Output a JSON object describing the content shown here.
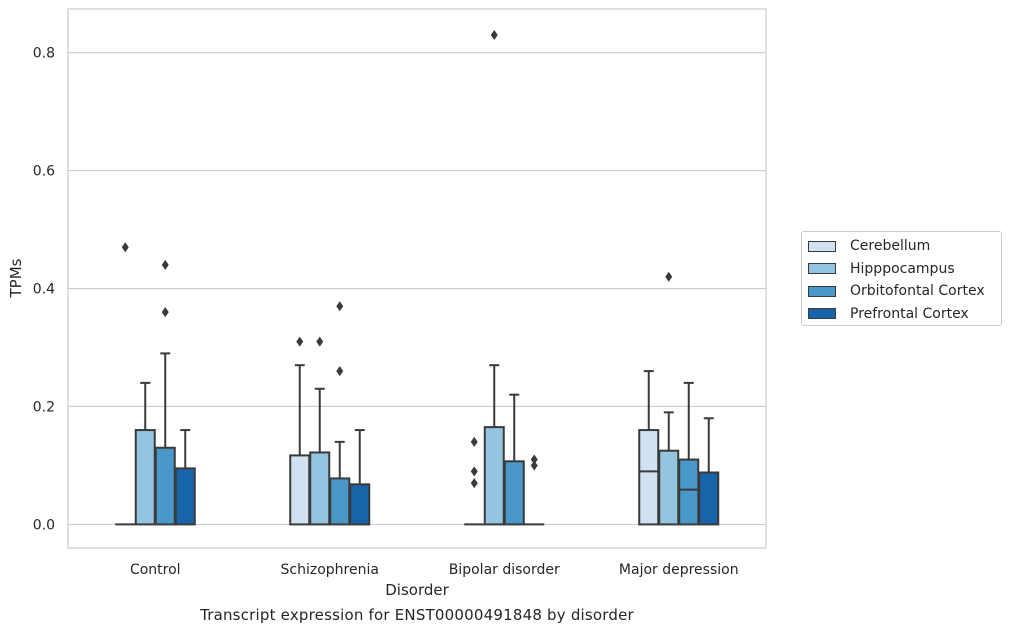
{
  "caption": "Transcript expression for ENST00000491848 by disorder",
  "chart_data": {
    "type": "box",
    "xlabel": "Disorder",
    "ylabel": "TPMs",
    "ylim": [
      -0.04,
      0.874
    ],
    "yticks": [
      "0.0",
      "0.2",
      "0.4",
      "0.6",
      "0.8"
    ],
    "ytick_values": [
      0.0,
      0.2,
      0.4,
      0.6,
      0.8
    ],
    "grid": true,
    "legend_position": "right",
    "categories": [
      "Control",
      "Schizophrenia",
      "Bipolar disorder",
      "Major depression"
    ],
    "series": [
      {
        "name": "Cerebellum",
        "color": "#d0e1f2",
        "boxes": [
          {
            "q1": 0,
            "median": 0,
            "q3": 0,
            "whisker_low": 0,
            "whisker_high": 0,
            "outliers": [
              0.47
            ]
          },
          {
            "q1": 0,
            "median": 0,
            "q3": 0.117,
            "whisker_low": 0,
            "whisker_high": 0.27,
            "outliers": [
              0.31
            ]
          },
          {
            "q1": 0,
            "median": 0,
            "q3": 0,
            "whisker_low": 0,
            "whisker_high": 0,
            "outliers": [
              0.07,
              0.09,
              0.14
            ]
          },
          {
            "q1": 0,
            "median": 0.09,
            "q3": 0.16,
            "whisker_low": 0,
            "whisker_high": 0.26,
            "outliers": []
          }
        ]
      },
      {
        "name": "Hipppocampus",
        "color": "#94c4df",
        "boxes": [
          {
            "q1": 0,
            "median": 0,
            "q3": 0.16,
            "whisker_low": 0,
            "whisker_high": 0.24,
            "outliers": []
          },
          {
            "q1": 0,
            "median": 0,
            "q3": 0.122,
            "whisker_low": 0,
            "whisker_high": 0.23,
            "outliers": [
              0.31
            ]
          },
          {
            "q1": 0,
            "median": 0,
            "q3": 0.165,
            "whisker_low": 0,
            "whisker_high": 0.27,
            "outliers": [
              0.83
            ]
          },
          {
            "q1": 0,
            "median": 0,
            "q3": 0.125,
            "whisker_low": 0,
            "whisker_high": 0.19,
            "outliers": [
              0.42
            ]
          }
        ]
      },
      {
        "name": "Orbitofontal Cortex",
        "color": "#4a98c9",
        "boxes": [
          {
            "q1": 0,
            "median": 0,
            "q3": 0.13,
            "whisker_low": 0,
            "whisker_high": 0.29,
            "outliers": [
              0.36,
              0.44
            ]
          },
          {
            "q1": 0,
            "median": 0,
            "q3": 0.078,
            "whisker_low": 0,
            "whisker_high": 0.14,
            "outliers": [
              0.26,
              0.37
            ]
          },
          {
            "q1": 0,
            "median": 0,
            "q3": 0.107,
            "whisker_low": 0,
            "whisker_high": 0.22,
            "outliers": []
          },
          {
            "q1": 0,
            "median": 0.059,
            "q3": 0.11,
            "whisker_low": 0,
            "whisker_high": 0.24,
            "outliers": []
          }
        ]
      },
      {
        "name": "Prefrontal Cortex",
        "color": "#1764ab",
        "boxes": [
          {
            "q1": 0,
            "median": 0,
            "q3": 0.095,
            "whisker_low": 0,
            "whisker_high": 0.16,
            "outliers": []
          },
          {
            "q1": 0,
            "median": 0,
            "q3": 0.068,
            "whisker_low": 0,
            "whisker_high": 0.16,
            "outliers": []
          },
          {
            "q1": 0,
            "median": 0,
            "q3": 0,
            "whisker_low": 0,
            "whisker_high": 0,
            "outliers": [
              0.1,
              0.11
            ]
          },
          {
            "q1": 0,
            "median": 0,
            "q3": 0.088,
            "whisker_low": 0,
            "whisker_high": 0.18,
            "outliers": []
          }
        ]
      }
    ]
  }
}
